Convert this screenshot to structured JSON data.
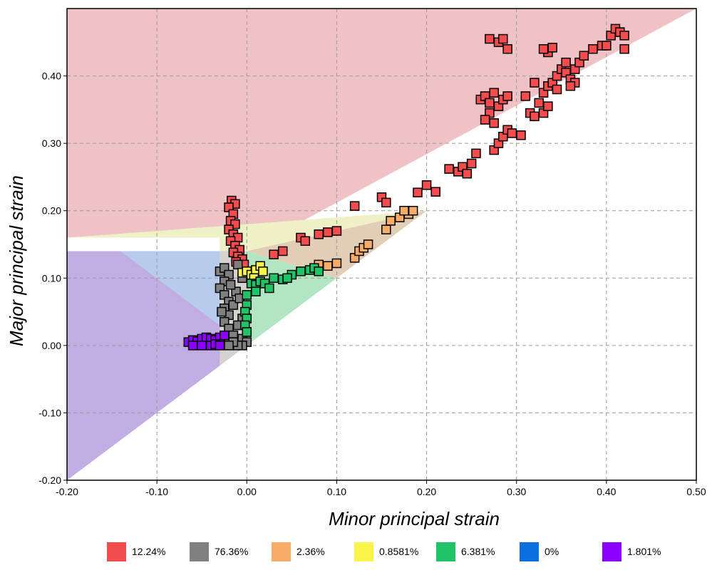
{
  "chart_data": {
    "type": "scatter",
    "title": "",
    "xlabel": "Minor principal strain",
    "ylabel": "Major principal strain",
    "xlim": [
      -0.2,
      0.5
    ],
    "ylim": [
      -0.2,
      0.5
    ],
    "grid": true,
    "x_ticks": [
      "-0.20",
      "-0.10",
      "0.00",
      "0.10",
      "0.20",
      "0.30",
      "0.40",
      "0.50"
    ],
    "y_ticks": [
      "-0.20",
      "-0.10",
      "0.00",
      "0.10",
      "0.20",
      "0.30",
      "0.40"
    ],
    "region_colors": {
      "safe_red": "#efc3c6",
      "yellow_band": "#eef0c6",
      "purple": "#c0aee3",
      "blue": "#b7cbed",
      "gray": "#d6d3cf",
      "tan": "#e2cdb6",
      "green": "#b2e5c1"
    },
    "series": [
      {
        "name": "red",
        "color": "#f24c4c",
        "pct": "12.24%",
        "points": [
          [
            -0.017,
            0.215
          ],
          [
            -0.013,
            0.21
          ],
          [
            -0.02,
            0.205
          ],
          [
            -0.015,
            0.195
          ],
          [
            -0.018,
            0.185
          ],
          [
            -0.013,
            0.18
          ],
          [
            -0.02,
            0.172
          ],
          [
            -0.015,
            0.165
          ],
          [
            -0.01,
            0.16
          ],
          [
            -0.018,
            0.155
          ],
          [
            -0.013,
            0.148
          ],
          [
            -0.008,
            0.142
          ],
          [
            -0.015,
            0.138
          ],
          [
            -0.01,
            0.132
          ],
          [
            -0.005,
            0.128
          ],
          [
            -0.012,
            0.124
          ],
          [
            -0.003,
            0.12
          ],
          [
            0.03,
            0.135
          ],
          [
            0.04,
            0.14
          ],
          [
            0.06,
            0.16
          ],
          [
            0.065,
            0.155
          ],
          [
            0.08,
            0.165
          ],
          [
            0.09,
            0.168
          ],
          [
            0.1,
            0.17
          ],
          [
            0.12,
            0.207
          ],
          [
            0.15,
            0.22
          ],
          [
            0.155,
            0.212
          ],
          [
            0.19,
            0.227
          ],
          [
            0.2,
            0.238
          ],
          [
            0.21,
            0.228
          ],
          [
            0.225,
            0.262
          ],
          [
            0.235,
            0.258
          ],
          [
            0.24,
            0.265
          ],
          [
            0.245,
            0.255
          ],
          [
            0.25,
            0.27
          ],
          [
            0.255,
            0.285
          ],
          [
            0.275,
            0.29
          ],
          [
            0.28,
            0.3
          ],
          [
            0.285,
            0.31
          ],
          [
            0.29,
            0.32
          ],
          [
            0.295,
            0.315
          ],
          [
            0.305,
            0.312
          ],
          [
            0.26,
            0.365
          ],
          [
            0.265,
            0.37
          ],
          [
            0.27,
            0.36
          ],
          [
            0.275,
            0.375
          ],
          [
            0.28,
            0.355
          ],
          [
            0.285,
            0.365
          ],
          [
            0.27,
            0.345
          ],
          [
            0.265,
            0.335
          ],
          [
            0.275,
            0.33
          ],
          [
            0.29,
            0.37
          ],
          [
            0.27,
            0.455
          ],
          [
            0.28,
            0.45
          ],
          [
            0.29,
            0.44
          ],
          [
            0.285,
            0.455
          ],
          [
            0.315,
            0.345
          ],
          [
            0.32,
            0.34
          ],
          [
            0.33,
            0.345
          ],
          [
            0.335,
            0.355
          ],
          [
            0.325,
            0.36
          ],
          [
            0.33,
            0.375
          ],
          [
            0.335,
            0.385
          ],
          [
            0.34,
            0.39
          ],
          [
            0.345,
            0.4
          ],
          [
            0.35,
            0.41
          ],
          [
            0.355,
            0.405
          ],
          [
            0.36,
            0.395
          ],
          [
            0.365,
            0.41
          ],
          [
            0.37,
            0.42
          ],
          [
            0.375,
            0.43
          ],
          [
            0.365,
            0.39
          ],
          [
            0.355,
            0.42
          ],
          [
            0.345,
            0.38
          ],
          [
            0.36,
            0.385
          ],
          [
            0.335,
            0.435
          ],
          [
            0.33,
            0.44
          ],
          [
            0.34,
            0.442
          ],
          [
            0.385,
            0.44
          ],
          [
            0.395,
            0.445
          ],
          [
            0.4,
            0.445
          ],
          [
            0.405,
            0.46
          ],
          [
            0.41,
            0.47
          ],
          [
            0.415,
            0.465
          ],
          [
            0.42,
            0.44
          ],
          [
            0.42,
            0.46
          ],
          [
            0.32,
            0.39
          ],
          [
            0.31,
            0.37
          ]
        ]
      },
      {
        "name": "gray",
        "color": "#808080",
        "pct": "76.36%",
        "points": [
          [
            -0.03,
            0.11
          ],
          [
            -0.025,
            0.115
          ],
          [
            -0.02,
            0.105
          ],
          [
            -0.025,
            0.095
          ],
          [
            -0.03,
            0.085
          ],
          [
            -0.025,
            0.075
          ],
          [
            -0.02,
            0.065
          ],
          [
            -0.025,
            0.055
          ],
          [
            -0.02,
            0.045
          ],
          [
            -0.025,
            0.035
          ],
          [
            -0.02,
            0.025
          ],
          [
            -0.015,
            0.015
          ],
          [
            -0.02,
            0.005
          ],
          [
            -0.01,
            0.005
          ],
          [
            -0.005,
            0.01
          ],
          [
            0.0,
            0.005
          ],
          [
            -0.005,
            0.0
          ],
          [
            -0.01,
            0.0
          ],
          [
            -0.015,
            0.005
          ],
          [
            -0.02,
            0.0
          ],
          [
            -0.028,
            0.05
          ],
          [
            -0.015,
            0.06
          ],
          [
            -0.012,
            0.08
          ],
          [
            -0.018,
            0.09
          ],
          [
            -0.01,
            0.12
          ],
          [
            -0.005,
            0.1
          ],
          [
            -0.008,
            0.07
          ],
          [
            -0.005,
            0.04
          ],
          [
            -0.01,
            0.03
          ],
          [
            0.0,
            0.02
          ]
        ]
      },
      {
        "name": "orange",
        "color": "#f7ad67",
        "pct": "2.36%",
        "points": [
          [
            0.08,
            0.12
          ],
          [
            0.09,
            0.118
          ],
          [
            0.1,
            0.122
          ],
          [
            0.12,
            0.13
          ],
          [
            0.125,
            0.14
          ],
          [
            0.13,
            0.145
          ],
          [
            0.135,
            0.15
          ],
          [
            0.155,
            0.172
          ],
          [
            0.16,
            0.185
          ],
          [
            0.17,
            0.19
          ],
          [
            0.18,
            0.195
          ],
          [
            0.185,
            0.2
          ],
          [
            0.175,
            0.2
          ]
        ]
      },
      {
        "name": "yellow",
        "color": "#fbf54b",
        "pct": "0.8581%",
        "points": [
          [
            -0.005,
            0.108
          ],
          [
            0.0,
            0.11
          ],
          [
            0.005,
            0.105
          ],
          [
            0.01,
            0.112
          ],
          [
            0.015,
            0.118
          ],
          [
            0.018,
            0.11
          ],
          [
            0.008,
            0.1
          ]
        ]
      },
      {
        "name": "green",
        "color": "#20c466",
        "pct": "6.381%",
        "points": [
          [
            0.005,
            0.092
          ],
          [
            0.01,
            0.09
          ],
          [
            0.015,
            0.095
          ],
          [
            0.02,
            0.092
          ],
          [
            0.03,
            0.1
          ],
          [
            0.04,
            0.098
          ],
          [
            0.05,
            0.105
          ],
          [
            0.06,
            0.11
          ],
          [
            0.07,
            0.112
          ],
          [
            0.075,
            0.115
          ],
          [
            0.08,
            0.11
          ],
          [
            0.045,
            0.1
          ],
          [
            0.025,
            0.085
          ],
          [
            0.01,
            0.08
          ],
          [
            0.0,
            0.075
          ],
          [
            0.0,
            0.06
          ],
          [
            -0.002,
            0.05
          ],
          [
            0.0,
            0.04
          ],
          [
            -0.002,
            0.03
          ],
          [
            0.0,
            0.02
          ]
        ]
      },
      {
        "name": "blue",
        "color": "#0a70e0",
        "pct": "0%",
        "points": []
      },
      {
        "name": "purple",
        "color": "#8c00ff",
        "pct": "1.801%",
        "points": [
          [
            -0.065,
            0.005
          ],
          [
            -0.06,
            0.008
          ],
          [
            -0.055,
            0.006
          ],
          [
            -0.05,
            0.01
          ],
          [
            -0.045,
            0.012
          ],
          [
            -0.04,
            0.01
          ],
          [
            -0.035,
            0.008
          ],
          [
            -0.03,
            0.012
          ],
          [
            -0.025,
            0.015
          ],
          [
            -0.05,
            0.0
          ],
          [
            -0.04,
            0.0
          ],
          [
            -0.035,
            0.002
          ],
          [
            -0.03,
            0.0
          ],
          [
            -0.06,
            0.0
          ]
        ]
      }
    ]
  }
}
